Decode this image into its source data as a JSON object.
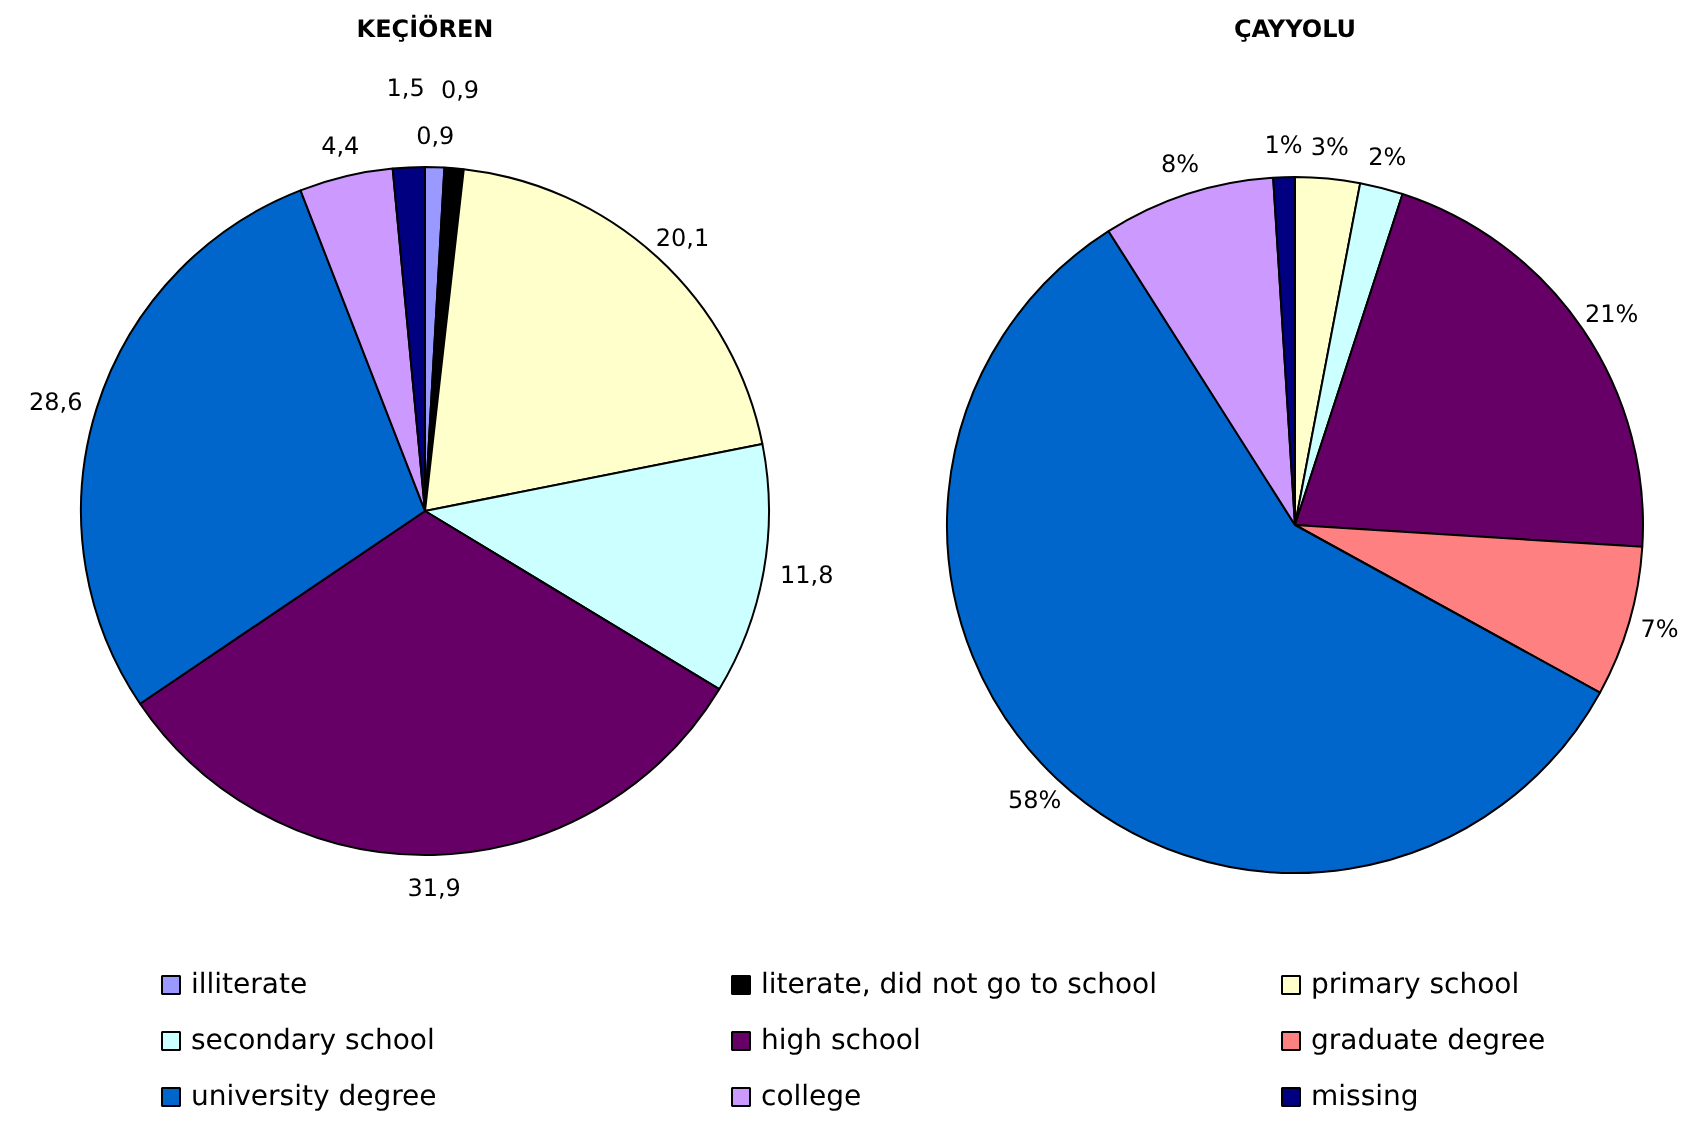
{
  "chart_data": [
    {
      "type": "pie",
      "title": "KEÇİÖREN",
      "categories": [
        "illiterate",
        "literate, did not go to school",
        "primary school",
        "secondary school",
        "high school",
        "graduate degree",
        "university degree",
        "college",
        "missing"
      ],
      "values": [
        0.9,
        0.9,
        20.1,
        11.8,
        31.9,
        0,
        28.6,
        4.4,
        1.5
      ],
      "value_labels": [
        "0,9",
        "0,9",
        "20,1",
        "11,8",
        "31,9",
        null,
        "28,6",
        "4,4",
        "1,5"
      ],
      "colors": [
        "#9999ff",
        "#000000",
        "#ffffcc",
        "#ccffff",
        "#660066",
        "#ff8080",
        "#0066cc",
        "#cc99ff",
        "#000080"
      ],
      "legend": "bottom"
    },
    {
      "type": "pie",
      "title": "ÇAYYOLU",
      "categories": [
        null,
        null,
        null,
        null,
        null,
        null,
        null,
        null,
        null
      ],
      "values": [
        0,
        0,
        3,
        2,
        21,
        7,
        58,
        8,
        1
      ],
      "value_labels": [
        null,
        null,
        "3%",
        "2%",
        "21%",
        "7%",
        "58%",
        "8%",
        "1%"
      ],
      "colors": [
        "#9999ff",
        "#000000",
        "#ffffcc",
        "#ccffff",
        "#660066",
        "#ff8080",
        "#0066cc",
        "#cc99ff",
        "#000080"
      ]
    }
  ]
}
